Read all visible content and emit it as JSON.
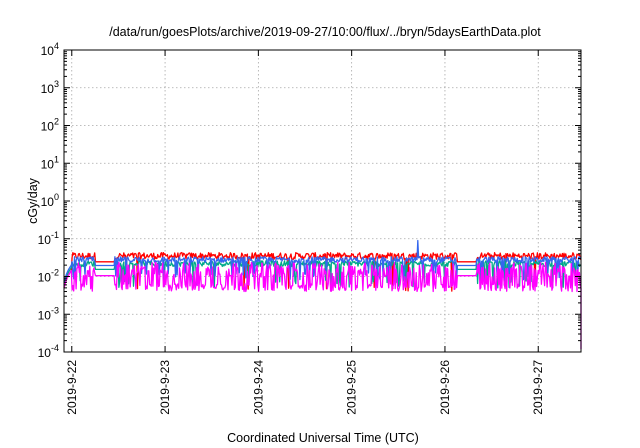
{
  "chart_data": {
    "type": "line",
    "title": "/data/run/goesPlots/archive/2019-09-27/10:00/flux/../bryn/5daysEarthData.plot",
    "xlabel": "Coordinated Universal Time (UTC)",
    "ylabel": "cGy/day",
    "yscale": "log",
    "ylim": [
      0.0001,
      10000
    ],
    "xlim": [
      "2019-09-21T22:00",
      "2019-09-27T11:00"
    ],
    "grid": true,
    "x_ticks": [
      "2019-9-22",
      "2019-9-23",
      "2019-9-24",
      "2019-9-25",
      "2019-9-26",
      "2019-9-27"
    ],
    "y_ticks": [
      {
        "base": "10",
        "exp": "-4",
        "value": 0.0001
      },
      {
        "base": "10",
        "exp": "-3",
        "value": 0.001
      },
      {
        "base": "10",
        "exp": "-2",
        "value": 0.01
      },
      {
        "base": "10",
        "exp": "-1",
        "value": 0.1
      },
      {
        "base": "10",
        "exp": "0",
        "value": 1
      },
      {
        "base": "10",
        "exp": "1",
        "value": 10
      },
      {
        "base": "10",
        "exp": "2",
        "value": 100
      },
      {
        "base": "10",
        "exp": "3",
        "value": 1000
      },
      {
        "base": "10",
        "exp": "4",
        "value": 10000
      }
    ],
    "data_gaps": [
      [
        "2019-09-22T06:00",
        "2019-09-22T11:00"
      ],
      [
        "2019-09-26T03:00",
        "2019-09-26T08:00"
      ]
    ],
    "series": [
      {
        "color": "#ff0000",
        "baseline": 0.035,
        "low": 0.004,
        "dip_rate": 0.02,
        "jitter": 0.18,
        "start_value": 0.005
      },
      {
        "color": "#00aa88",
        "baseline": 0.022,
        "low": 0.005,
        "dip_rate": 0.1,
        "jitter": 0.15,
        "start_value": 0.006
      },
      {
        "color": "#3366ee",
        "baseline": 0.028,
        "low": 0.008,
        "dip_rate": 0.12,
        "jitter": 0.15,
        "start_value": 0.007
      },
      {
        "color": "#ff00ff",
        "baseline": 0.015,
        "low": 0.004,
        "dip_rate": 0.42,
        "jitter": 0.4,
        "start_value": 0.005
      }
    ]
  }
}
